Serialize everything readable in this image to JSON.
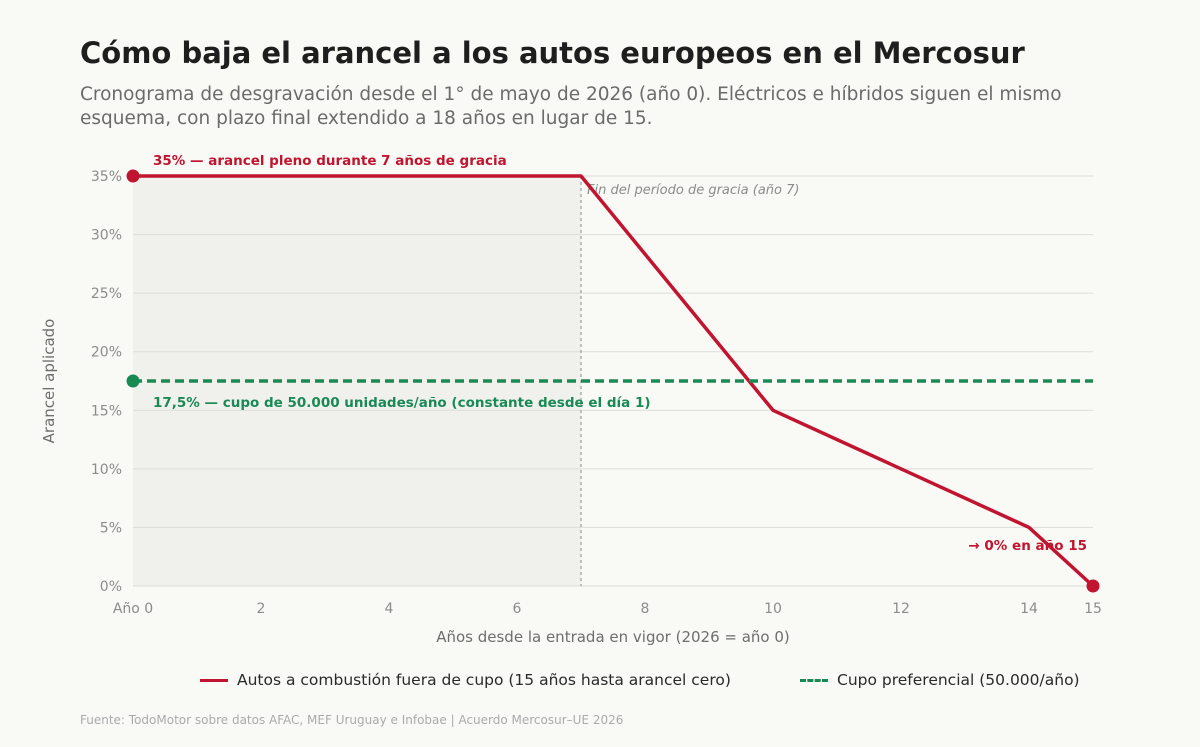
{
  "header": {
    "title": "Cómo baja el arancel a los autos europeos en el Mercosur",
    "subtitle": "Cronograma de desgravación desde el 1° de mayo de 2026 (año 0). Eléctricos e híbridos siguen el mismo esquema, con plazo final extendido a 18 años en lugar de 15."
  },
  "chart_data": {
    "type": "line",
    "xlabel": "Años desde la entrada en vigor (2026 = año 0)",
    "ylabel": "Arancel aplicado",
    "xlim": [
      0,
      15
    ],
    "ylim": [
      0,
      35
    ],
    "x_ticks": [
      {
        "value": 0,
        "label": "Año 0"
      },
      {
        "value": 2,
        "label": "2"
      },
      {
        "value": 4,
        "label": "4"
      },
      {
        "value": 6,
        "label": "6"
      },
      {
        "value": 8,
        "label": "8"
      },
      {
        "value": 10,
        "label": "10"
      },
      {
        "value": 12,
        "label": "12"
      },
      {
        "value": 14,
        "label": "14"
      },
      {
        "value": 15,
        "label": "15"
      }
    ],
    "y_ticks": [
      {
        "value": 0,
        "label": "0%"
      },
      {
        "value": 5,
        "label": "5%"
      },
      {
        "value": 10,
        "label": "10%"
      },
      {
        "value": 15,
        "label": "15%"
      },
      {
        "value": 20,
        "label": "20%"
      },
      {
        "value": 25,
        "label": "25%"
      },
      {
        "value": 30,
        "label": "30%"
      },
      {
        "value": 35,
        "label": "35%"
      }
    ],
    "grid": true,
    "legend_position": "bottom",
    "shaded_region": {
      "x": [
        0,
        7
      ]
    },
    "vline": {
      "x": 7,
      "label": "Fin del período de gracia (año 7)"
    },
    "series": [
      {
        "name": "Autos a combustión fuera de cupo (15 años hasta arancel cero)",
        "color": "#c0142f",
        "style": "solid",
        "x": [
          0,
          7,
          10,
          14,
          15
        ],
        "y": [
          35,
          35,
          15,
          5,
          0
        ],
        "end_markers": true
      },
      {
        "name": "Cupo preferencial (50.000/año)",
        "color": "#1a8a55",
        "style": "dashed",
        "x": [
          0,
          15
        ],
        "y": [
          17.5,
          17.5
        ],
        "start_marker": true
      }
    ],
    "annotations": [
      {
        "text": "35% — arancel pleno durante 7 años de gracia",
        "color": "#c0142f"
      },
      {
        "text": "17,5% — cupo de 50.000 unidades/año (constante desde el día 1)",
        "color": "#1a8a55"
      },
      {
        "text": "→ 0% en año 15",
        "color": "#c0142f"
      }
    ]
  },
  "footer": {
    "source": "Fuente: TodoMotor sobre datos AFAC, MEF Uruguay e Infobae | Acuerdo Mercosur–UE 2026"
  }
}
